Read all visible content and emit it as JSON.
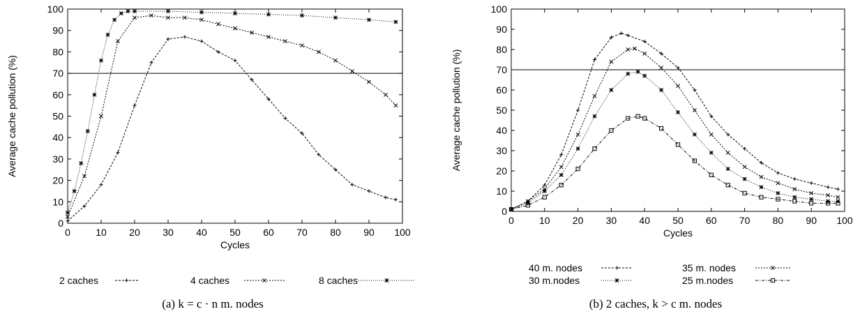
{
  "chart_data": [
    {
      "id": "a",
      "type": "line",
      "caption": "(a) k = c · n m. nodes",
      "xlabel": "Cycles",
      "ylabel": "Average cache pollution (%)",
      "xlim": [
        0,
        100
      ],
      "ylim": [
        0,
        100
      ],
      "xticks": [
        "0",
        "10",
        "20",
        "30",
        "40",
        "50",
        "60",
        "70",
        "80",
        "90",
        "100"
      ],
      "yticks": [
        "0",
        "10",
        "20",
        "30",
        "40",
        "50",
        "60",
        "70",
        "80",
        "90",
        "100"
      ],
      "reference_line": 70,
      "legend_position": "bottom",
      "series": [
        {
          "name": "2 caches",
          "marker": "plus",
          "dash": "3,2",
          "x": [
            0,
            5,
            10,
            15,
            20,
            25,
            30,
            35,
            40,
            45,
            50,
            55,
            60,
            65,
            70,
            75,
            80,
            85,
            90,
            95,
            98
          ],
          "y": [
            1,
            8,
            18,
            33,
            55,
            75,
            86,
            87,
            85,
            80,
            76,
            67,
            58,
            49,
            42,
            32,
            25,
            18,
            15,
            12,
            11
          ]
        },
        {
          "name": "4 caches",
          "marker": "cross",
          "dash": "2,2",
          "x": [
            0,
            5,
            10,
            15,
            20,
            25,
            30,
            35,
            40,
            45,
            50,
            55,
            60,
            65,
            70,
            75,
            80,
            85,
            90,
            95,
            98
          ],
          "y": [
            3,
            22,
            50,
            85,
            96,
            97,
            96,
            96,
            95,
            93,
            91,
            89,
            87,
            85,
            83,
            80,
            76,
            71,
            66,
            60,
            55
          ]
        },
        {
          "name": "8 caches",
          "marker": "star",
          "dash": "1,2",
          "x": [
            0,
            2,
            4,
            6,
            8,
            10,
            12,
            14,
            16,
            18,
            20,
            30,
            40,
            50,
            60,
            70,
            80,
            90,
            98
          ],
          "y": [
            5,
            15,
            28,
            43,
            60,
            76,
            88,
            95,
            98,
            99,
            99,
            99,
            98.5,
            98,
            97.5,
            97,
            96,
            95,
            94
          ]
        }
      ]
    },
    {
      "id": "b",
      "type": "line",
      "caption": "(b) 2 caches, k > c m. nodes",
      "xlabel": "Cycles",
      "ylabel": "Average cache pollution (%)",
      "xlim": [
        0,
        100
      ],
      "ylim": [
        0,
        100
      ],
      "xticks": [
        "0",
        "10",
        "20",
        "30",
        "40",
        "50",
        "60",
        "70",
        "80",
        "90",
        "100"
      ],
      "yticks": [
        "0",
        "10",
        "20",
        "30",
        "40",
        "50",
        "60",
        "70",
        "80",
        "90",
        "100"
      ],
      "reference_line": 70,
      "legend_position": "bottom",
      "series": [
        {
          "name": "40 m. nodes",
          "marker": "plus",
          "dash": "3,2",
          "x": [
            0,
            5,
            10,
            15,
            20,
            25,
            30,
            33,
            35,
            40,
            45,
            50,
            55,
            60,
            65,
            70,
            75,
            80,
            85,
            90,
            95,
            98
          ],
          "y": [
            1,
            5,
            13,
            28,
            50,
            75,
            86,
            88,
            87,
            84,
            78,
            71,
            60,
            47,
            38,
            31,
            24,
            19,
            16,
            14,
            12,
            11
          ]
        },
        {
          "name": "35 m. nodes",
          "marker": "cross",
          "dash": "2,2",
          "x": [
            0,
            5,
            10,
            15,
            20,
            25,
            30,
            35,
            37,
            40,
            45,
            50,
            55,
            60,
            65,
            70,
            75,
            80,
            85,
            90,
            95,
            98
          ],
          "y": [
            1,
            5,
            11,
            22,
            38,
            57,
            74,
            80,
            80.5,
            78,
            71,
            62,
            50,
            38,
            29,
            22,
            17,
            14,
            11,
            9,
            8,
            7
          ]
        },
        {
          "name": "30 m.nodes",
          "marker": "star",
          "dash": "1,2",
          "x": [
            0,
            5,
            10,
            15,
            20,
            25,
            30,
            35,
            38,
            40,
            45,
            50,
            55,
            60,
            65,
            70,
            75,
            80,
            85,
            90,
            95,
            98
          ],
          "y": [
            1,
            4,
            10,
            18,
            31,
            47,
            60,
            68,
            69,
            67,
            60,
            49,
            38,
            29,
            21,
            16,
            12,
            9,
            7,
            6,
            5,
            5
          ]
        },
        {
          "name": "25 m.nodes",
          "marker": "square",
          "dash": "4,2,1,2",
          "x": [
            0,
            5,
            10,
            15,
            20,
            25,
            30,
            35,
            38,
            40,
            45,
            50,
            55,
            60,
            65,
            70,
            75,
            80,
            85,
            90,
            95,
            98
          ],
          "y": [
            1,
            3,
            7,
            13,
            21,
            31,
            40,
            46,
            47,
            46,
            41,
            33,
            25,
            18,
            13,
            9,
            7,
            6,
            5,
            4,
            4,
            4
          ]
        }
      ]
    }
  ]
}
